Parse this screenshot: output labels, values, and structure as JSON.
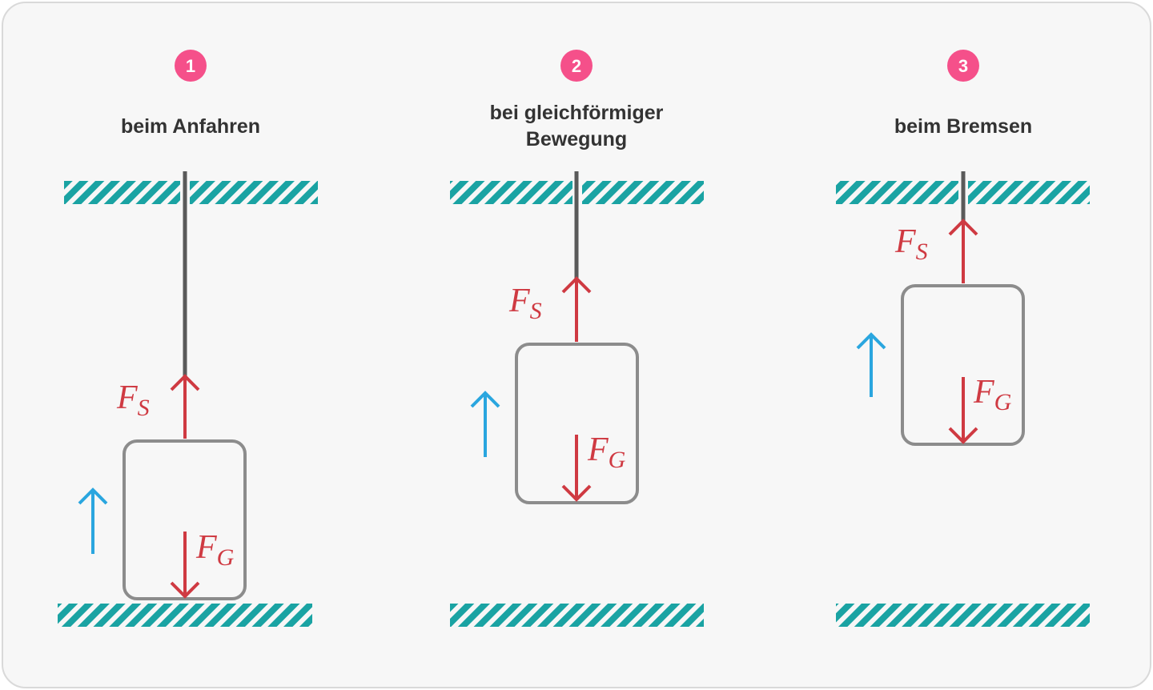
{
  "colors": {
    "badge": "#f5508a",
    "force": "#cf3a42",
    "motion": "#2aa6df",
    "hatch": "#1aa3a3",
    "rope": "#5a5a5a",
    "cabin": "#8c8c8c",
    "text": "#333333"
  },
  "panels": [
    {
      "number": "1",
      "title_lines": [
        "beim Anfahren"
      ],
      "force_up": {
        "symbol": "F",
        "subscript": "S"
      },
      "force_down": {
        "symbol": "F",
        "subscript": "G"
      },
      "motion_direction": "up"
    },
    {
      "number": "2",
      "title_lines": [
        "bei gleichförmiger",
        "Bewegung"
      ],
      "force_up": {
        "symbol": "F",
        "subscript": "S"
      },
      "force_down": {
        "symbol": "F",
        "subscript": "G"
      },
      "motion_direction": "up"
    },
    {
      "number": "3",
      "title_lines": [
        "beim Bremsen"
      ],
      "force_up": {
        "symbol": "F",
        "subscript": "S"
      },
      "force_down": {
        "symbol": "F",
        "subscript": "G"
      },
      "motion_direction": "up"
    }
  ]
}
